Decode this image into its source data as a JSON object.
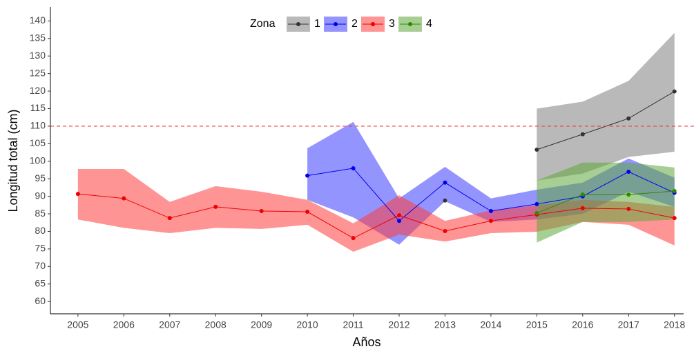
{
  "chart_data": {
    "type": "line",
    "x_label": "Años",
    "y_label": "Longitud total (cm)",
    "legend_title": "Zona",
    "legend_position": "top",
    "x": [
      2005,
      2006,
      2007,
      2008,
      2009,
      2010,
      2011,
      2012,
      2013,
      2014,
      2015,
      2016,
      2017,
      2018
    ],
    "xlim": [
      2004.4,
      2018.2
    ],
    "xticks": [
      2005,
      2006,
      2007,
      2008,
      2009,
      2010,
      2011,
      2012,
      2013,
      2014,
      2015,
      2016,
      2017,
      2018
    ],
    "ylim": [
      56.5,
      144
    ],
    "yticks": [
      60,
      65,
      70,
      75,
      80,
      85,
      90,
      95,
      100,
      105,
      110,
      115,
      120,
      125,
      130,
      135,
      140
    ],
    "hline": {
      "value": 110,
      "color": "#e8403a"
    },
    "series": [
      {
        "name": "1",
        "color": "#333333",
        "fill": "#7f7f7f",
        "values": [
          null,
          null,
          null,
          null,
          null,
          null,
          null,
          null,
          88.8,
          null,
          103.3,
          107.7,
          112.2,
          119.9
        ],
        "upper": [
          null,
          null,
          null,
          null,
          null,
          null,
          null,
          null,
          null,
          null,
          115,
          117,
          122.9,
          136.6
        ],
        "lower": [
          null,
          null,
          null,
          null,
          null,
          null,
          null,
          null,
          null,
          null,
          94.5,
          96.5,
          101.2,
          102.7
        ]
      },
      {
        "name": "2",
        "color": "#0000ee",
        "fill": "#3c3cff",
        "values": [
          null,
          null,
          null,
          null,
          null,
          95.9,
          98,
          83,
          93.9,
          85.8,
          87.8,
          90,
          97,
          91
        ],
        "upper": [
          null,
          null,
          null,
          null,
          null,
          103.7,
          111.2,
          89.4,
          98.4,
          89.4,
          91.9,
          93.9,
          100.8,
          95.3
        ],
        "lower": [
          null,
          null,
          null,
          null,
          null,
          89,
          84,
          76.2,
          88.6,
          82.7,
          83.4,
          85,
          91.3,
          87
        ]
      },
      {
        "name": "3",
        "color": "#ee0000",
        "fill": "#ff3c3c",
        "values": [
          90.7,
          89.4,
          83.8,
          87,
          85.8,
          85.6,
          78.1,
          84.6,
          80.1,
          83,
          84.8,
          86.6,
          86.4,
          83.8
        ],
        "upper": [
          97.8,
          97.8,
          88.4,
          92.9,
          91.3,
          89,
          82.3,
          90.3,
          83,
          86,
          87.4,
          89,
          88.4,
          87
        ],
        "lower": [
          83.4,
          81,
          79.5,
          81,
          80.7,
          81.9,
          74.2,
          79.1,
          77.1,
          79.5,
          79.9,
          82.7,
          81.9,
          76
        ]
      },
      {
        "name": "4",
        "color": "#2e8b00",
        "fill": "#5fa83a",
        "values": [
          null,
          null,
          null,
          null,
          null,
          null,
          null,
          null,
          null,
          null,
          85.2,
          90.5,
          90.5,
          91.5
        ],
        "upper": [
          null,
          null,
          null,
          null,
          null,
          null,
          null,
          null,
          null,
          null,
          94.5,
          99.6,
          99.6,
          98.2
        ],
        "lower": [
          null,
          null,
          null,
          null,
          null,
          null,
          null,
          null,
          null,
          null,
          76.8,
          82.7,
          82.7,
          83.4
        ]
      }
    ]
  }
}
